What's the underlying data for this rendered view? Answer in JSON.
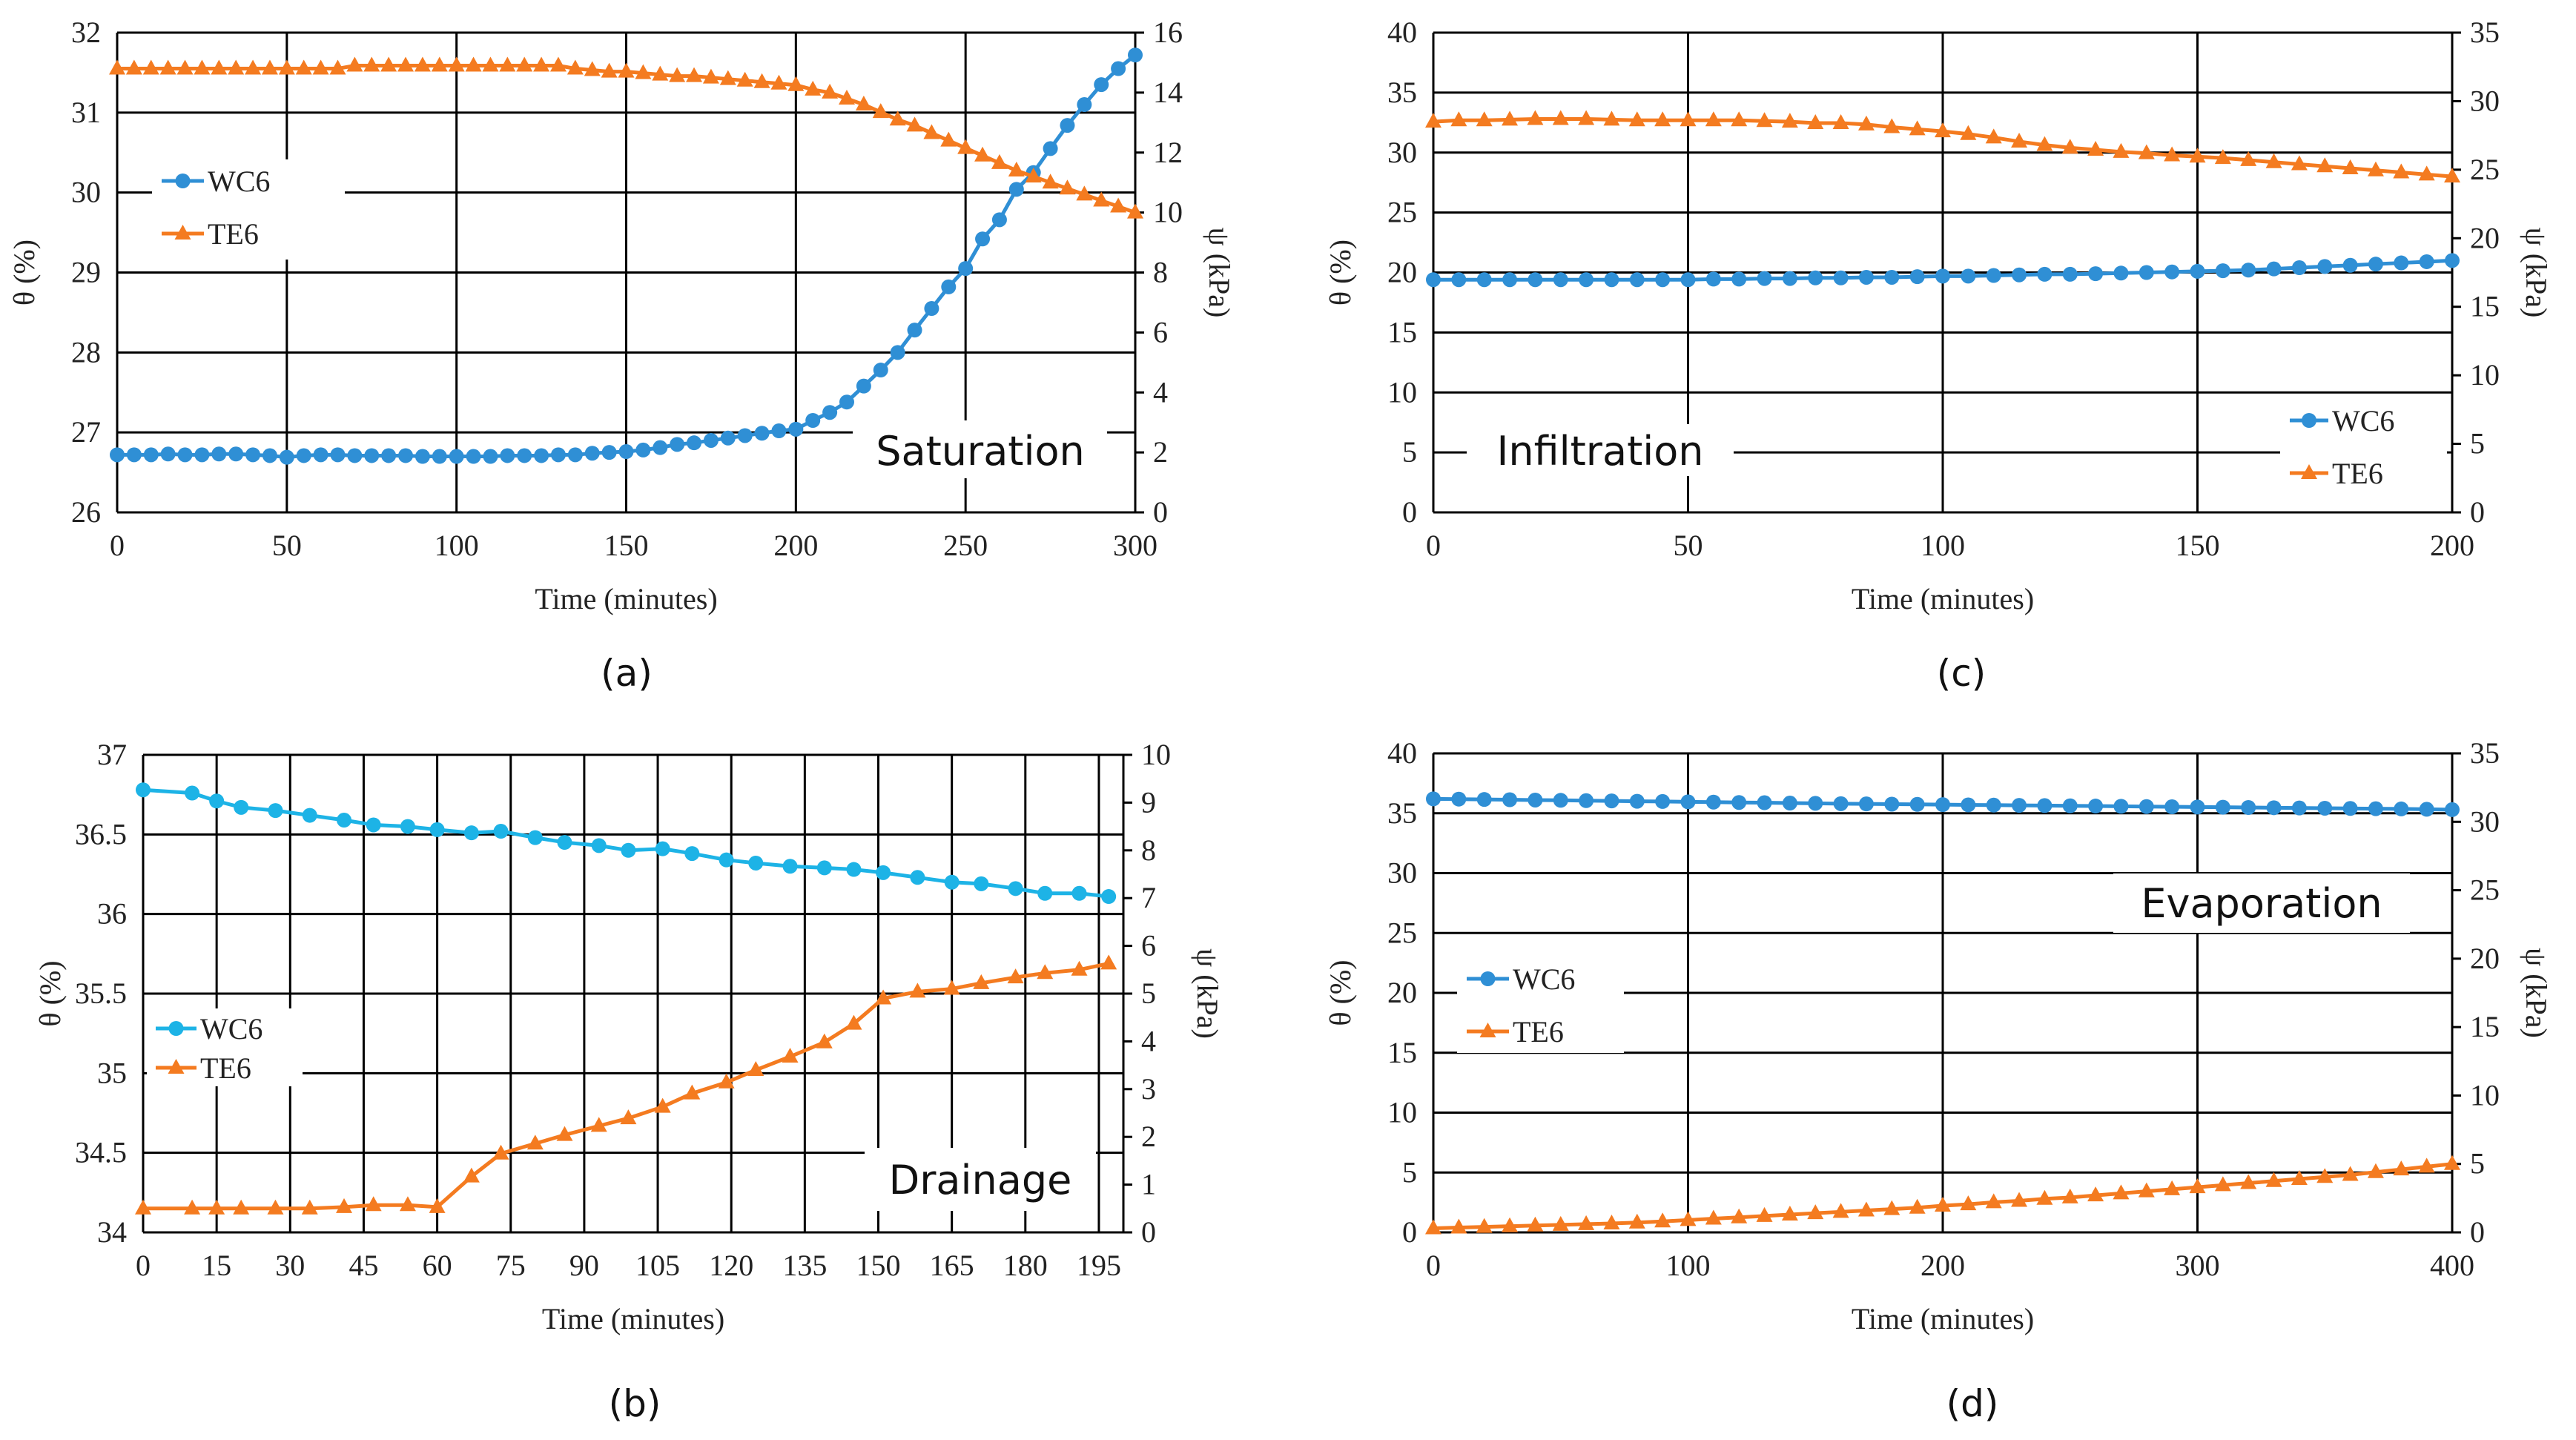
{
  "chart_data": [
    {
      "type": "line",
      "caption": "(a)",
      "annotation": "Saturation",
      "xlabel": "Time (minutes)",
      "ylabel": "θ (%)",
      "y2label": "ψ (kPa)",
      "xlim": [
        0,
        300
      ],
      "xticks": [
        0,
        50,
        100,
        150,
        200,
        250,
        300
      ],
      "ylim": [
        26,
        32
      ],
      "yticks": [
        26,
        27,
        28,
        29,
        30,
        31,
        32
      ],
      "y2lim": [
        0,
        16
      ],
      "y2ticks": [
        0,
        2,
        4,
        6,
        8,
        10,
        12,
        14,
        16
      ],
      "grid": true,
      "legend_position": "upper-left",
      "series": [
        {
          "name": "WC6",
          "axis": "left",
          "marker": "circle",
          "color": "#2f8fd5",
          "x": [
            0,
            5,
            10,
            15,
            20,
            25,
            30,
            35,
            40,
            45,
            50,
            55,
            60,
            65,
            70,
            75,
            80,
            85,
            90,
            95,
            100,
            105,
            110,
            115,
            120,
            125,
            130,
            135,
            140,
            145,
            150,
            155,
            160,
            165,
            170,
            175,
            180,
            185,
            190,
            195,
            200,
            205,
            210,
            215,
            220,
            225,
            230,
            235,
            240,
            245,
            250,
            255,
            260,
            265,
            270,
            275,
            280,
            285,
            290,
            295,
            300
          ],
          "y": [
            26.72,
            26.72,
            26.72,
            26.73,
            26.72,
            26.72,
            26.73,
            26.73,
            26.72,
            26.71,
            26.69,
            26.71,
            26.72,
            26.72,
            26.71,
            26.71,
            26.71,
            26.71,
            26.7,
            26.7,
            26.7,
            26.7,
            26.7,
            26.71,
            26.71,
            26.71,
            26.72,
            26.72,
            26.74,
            26.75,
            26.76,
            26.78,
            26.81,
            26.85,
            26.87,
            26.9,
            26.93,
            26.96,
            26.99,
            27.02,
            27.04,
            27.15,
            27.25,
            27.38,
            27.58,
            27.78,
            28.0,
            28.28,
            28.55,
            28.82,
            29.05,
            29.42,
            29.66,
            30.04,
            30.25,
            30.55,
            30.84,
            31.1,
            31.35,
            31.55,
            31.72
          ]
        },
        {
          "name": "TE6",
          "axis": "right",
          "marker": "triangle",
          "color": "#f47b20",
          "x": [
            0,
            5,
            10,
            15,
            20,
            25,
            30,
            35,
            40,
            45,
            50,
            55,
            60,
            65,
            70,
            75,
            80,
            85,
            90,
            95,
            100,
            105,
            110,
            115,
            120,
            125,
            130,
            135,
            140,
            145,
            150,
            155,
            160,
            165,
            170,
            175,
            180,
            185,
            190,
            195,
            200,
            205,
            210,
            215,
            220,
            225,
            230,
            235,
            240,
            245,
            250,
            255,
            260,
            265,
            270,
            275,
            280,
            285,
            290,
            295,
            300
          ],
          "y": [
            14.8,
            14.8,
            14.8,
            14.8,
            14.8,
            14.8,
            14.8,
            14.8,
            14.8,
            14.8,
            14.8,
            14.8,
            14.8,
            14.8,
            14.9,
            14.9,
            14.9,
            14.9,
            14.9,
            14.9,
            14.9,
            14.9,
            14.9,
            14.9,
            14.9,
            14.9,
            14.9,
            14.8,
            14.75,
            14.7,
            14.7,
            14.65,
            14.6,
            14.55,
            14.55,
            14.5,
            14.45,
            14.4,
            14.35,
            14.3,
            14.25,
            14.1,
            14.0,
            13.8,
            13.6,
            13.35,
            13.1,
            12.9,
            12.65,
            12.4,
            12.15,
            11.9,
            11.65,
            11.4,
            11.2,
            11.0,
            10.8,
            10.6,
            10.4,
            10.2,
            10.0
          ]
        }
      ]
    },
    {
      "type": "line",
      "caption": "(b)",
      "annotation": "Drainage",
      "xlabel": "Time (minutes)",
      "ylabel": "θ (%)",
      "y2label": "ψ (kPa)",
      "xlim": [
        0,
        200
      ],
      "xticks": [
        0,
        15,
        30,
        45,
        60,
        75,
        90,
        105,
        120,
        135,
        150,
        165,
        180,
        195
      ],
      "ylim": [
        34,
        37
      ],
      "yticks": [
        34,
        34.5,
        35,
        35.5,
        36,
        36.5,
        37
      ],
      "y2lim": [
        0,
        10
      ],
      "y2ticks": [
        0,
        1,
        2,
        3,
        4,
        5,
        6,
        7,
        8,
        9,
        10
      ],
      "grid": true,
      "legend_position": "middle-left",
      "series": [
        {
          "name": "WC6",
          "axis": "left",
          "marker": "circle",
          "color": "#1db3e6",
          "x": [
            0,
            10,
            15,
            20,
            27,
            34,
            41,
            47,
            54,
            60,
            67,
            73,
            80,
            86,
            93,
            99,
            106,
            112,
            119,
            125,
            132,
            139,
            145,
            151,
            158,
            165,
            171,
            178,
            184,
            191,
            197
          ],
          "y": [
            36.78,
            36.76,
            36.71,
            36.67,
            36.65,
            36.62,
            36.59,
            36.56,
            36.55,
            36.53,
            36.51,
            36.52,
            36.48,
            36.45,
            36.43,
            36.4,
            36.41,
            36.38,
            36.34,
            36.32,
            36.3,
            36.29,
            36.28,
            36.26,
            36.23,
            36.2,
            36.19,
            36.16,
            36.13,
            36.13,
            36.11
          ]
        },
        {
          "name": "TE6",
          "axis": "right",
          "marker": "triangle",
          "color": "#f47b20",
          "x": [
            0,
            10,
            15,
            20,
            27,
            34,
            41,
            47,
            54,
            60,
            67,
            73,
            80,
            86,
            93,
            99,
            106,
            112,
            119,
            125,
            132,
            139,
            145,
            151,
            158,
            165,
            171,
            178,
            184,
            191,
            197
          ],
          "y": [
            0.5,
            0.5,
            0.5,
            0.5,
            0.5,
            0.5,
            0.53,
            0.57,
            0.57,
            0.53,
            1.17,
            1.65,
            1.86,
            2.04,
            2.23,
            2.39,
            2.63,
            2.91,
            3.14,
            3.4,
            3.68,
            3.98,
            4.37,
            4.9,
            5.04,
            5.1,
            5.22,
            5.34,
            5.43,
            5.5,
            5.63
          ]
        }
      ]
    },
    {
      "type": "line",
      "caption": "(c)",
      "annotation": "Infiltration",
      "xlabel": "Time (minutes)",
      "ylabel": "θ (%)",
      "y2label": "ψ (kPa)",
      "xlim": [
        0,
        200
      ],
      "xticks": [
        0,
        50,
        100,
        150,
        200
      ],
      "ylim": [
        0,
        40
      ],
      "yticks": [
        0,
        5,
        10,
        15,
        20,
        25,
        30,
        35,
        40
      ],
      "y2lim": [
        0,
        35
      ],
      "y2ticks": [
        0,
        5,
        10,
        15,
        20,
        25,
        30,
        35
      ],
      "grid": true,
      "legend_position": "lower-right",
      "series": [
        {
          "name": "WC6",
          "axis": "left",
          "marker": "circle",
          "color": "#2f8fd5",
          "x": [
            0,
            5,
            10,
            15,
            20,
            25,
            30,
            35,
            40,
            45,
            50,
            55,
            60,
            65,
            70,
            75,
            80,
            85,
            90,
            95,
            100,
            105,
            110,
            115,
            120,
            125,
            130,
            135,
            140,
            145,
            150,
            155,
            160,
            165,
            170,
            175,
            180,
            185,
            190,
            195,
            200
          ],
          "y": [
            19.4,
            19.4,
            19.4,
            19.4,
            19.4,
            19.4,
            19.4,
            19.4,
            19.4,
            19.4,
            19.4,
            19.45,
            19.45,
            19.5,
            19.5,
            19.55,
            19.55,
            19.6,
            19.6,
            19.65,
            19.7,
            19.7,
            19.75,
            19.8,
            19.85,
            19.85,
            19.9,
            19.95,
            20.0,
            20.05,
            20.1,
            20.15,
            20.2,
            20.3,
            20.4,
            20.5,
            20.6,
            20.7,
            20.8,
            20.9,
            21.0
          ]
        },
        {
          "name": "TE6",
          "axis": "right",
          "marker": "triangle",
          "color": "#f47b20",
          "x": [
            0,
            5,
            10,
            15,
            20,
            25,
            30,
            35,
            40,
            45,
            50,
            55,
            60,
            65,
            70,
            75,
            80,
            85,
            90,
            95,
            100,
            105,
            110,
            115,
            120,
            125,
            130,
            135,
            140,
            145,
            150,
            155,
            160,
            165,
            170,
            175,
            180,
            185,
            190,
            195,
            200
          ],
          "y": [
            28.5,
            28.6,
            28.6,
            28.65,
            28.7,
            28.7,
            28.7,
            28.65,
            28.6,
            28.6,
            28.6,
            28.6,
            28.6,
            28.55,
            28.5,
            28.4,
            28.4,
            28.3,
            28.1,
            27.95,
            27.8,
            27.6,
            27.35,
            27.05,
            26.8,
            26.6,
            26.45,
            26.3,
            26.2,
            26.05,
            25.95,
            25.85,
            25.7,
            25.55,
            25.4,
            25.25,
            25.1,
            24.95,
            24.8,
            24.65,
            24.5
          ]
        }
      ]
    },
    {
      "type": "line",
      "caption": "(d)",
      "annotation": "Evaporation",
      "xlabel": "Time (minutes)",
      "ylabel": "θ (%)",
      "y2label": "ψ (kPa)",
      "xlim": [
        0,
        400
      ],
      "xticks": [
        0,
        100,
        200,
        300,
        400
      ],
      "ylim": [
        0,
        40
      ],
      "yticks": [
        0,
        5,
        10,
        15,
        20,
        25,
        30,
        35,
        40
      ],
      "y2lim": [
        0,
        35
      ],
      "y2ticks": [
        0,
        5,
        10,
        15,
        20,
        25,
        30,
        35
      ],
      "grid": true,
      "legend_position": "middle-left",
      "series": [
        {
          "name": "WC6",
          "axis": "left",
          "marker": "circle",
          "color": "#2f8fd5",
          "x": [
            0,
            10,
            20,
            30,
            40,
            50,
            60,
            70,
            80,
            90,
            100,
            110,
            120,
            130,
            140,
            150,
            160,
            170,
            180,
            190,
            200,
            210,
            220,
            230,
            240,
            250,
            260,
            270,
            280,
            290,
            300,
            310,
            320,
            330,
            340,
            350,
            360,
            370,
            380,
            390,
            400
          ],
          "y": [
            36.2,
            36.18,
            36.15,
            36.13,
            36.1,
            36.08,
            36.05,
            36.03,
            36.0,
            35.98,
            35.95,
            35.93,
            35.9,
            35.88,
            35.85,
            35.83,
            35.8,
            35.78,
            35.76,
            35.74,
            35.72,
            35.7,
            35.68,
            35.66,
            35.64,
            35.62,
            35.6,
            35.58,
            35.56,
            35.54,
            35.52,
            35.5,
            35.48,
            35.46,
            35.44,
            35.42,
            35.4,
            35.38,
            35.36,
            35.33,
            35.3
          ]
        },
        {
          "name": "TE6",
          "axis": "right",
          "marker": "triangle",
          "color": "#f47b20",
          "x": [
            0,
            10,
            20,
            30,
            40,
            50,
            60,
            70,
            80,
            90,
            100,
            110,
            120,
            130,
            140,
            150,
            160,
            170,
            180,
            190,
            200,
            210,
            220,
            230,
            240,
            250,
            260,
            270,
            280,
            290,
            300,
            310,
            320,
            330,
            340,
            350,
            360,
            370,
            380,
            390,
            400
          ],
          "y": [
            0.3,
            0.35,
            0.4,
            0.45,
            0.5,
            0.55,
            0.6,
            0.65,
            0.72,
            0.8,
            0.9,
            1.0,
            1.1,
            1.2,
            1.3,
            1.4,
            1.5,
            1.6,
            1.7,
            1.8,
            1.95,
            2.05,
            2.2,
            2.3,
            2.45,
            2.55,
            2.7,
            2.85,
            3.0,
            3.15,
            3.3,
            3.45,
            3.6,
            3.75,
            3.9,
            4.05,
            4.2,
            4.4,
            4.6,
            4.8,
            5.0
          ]
        }
      ]
    }
  ]
}
